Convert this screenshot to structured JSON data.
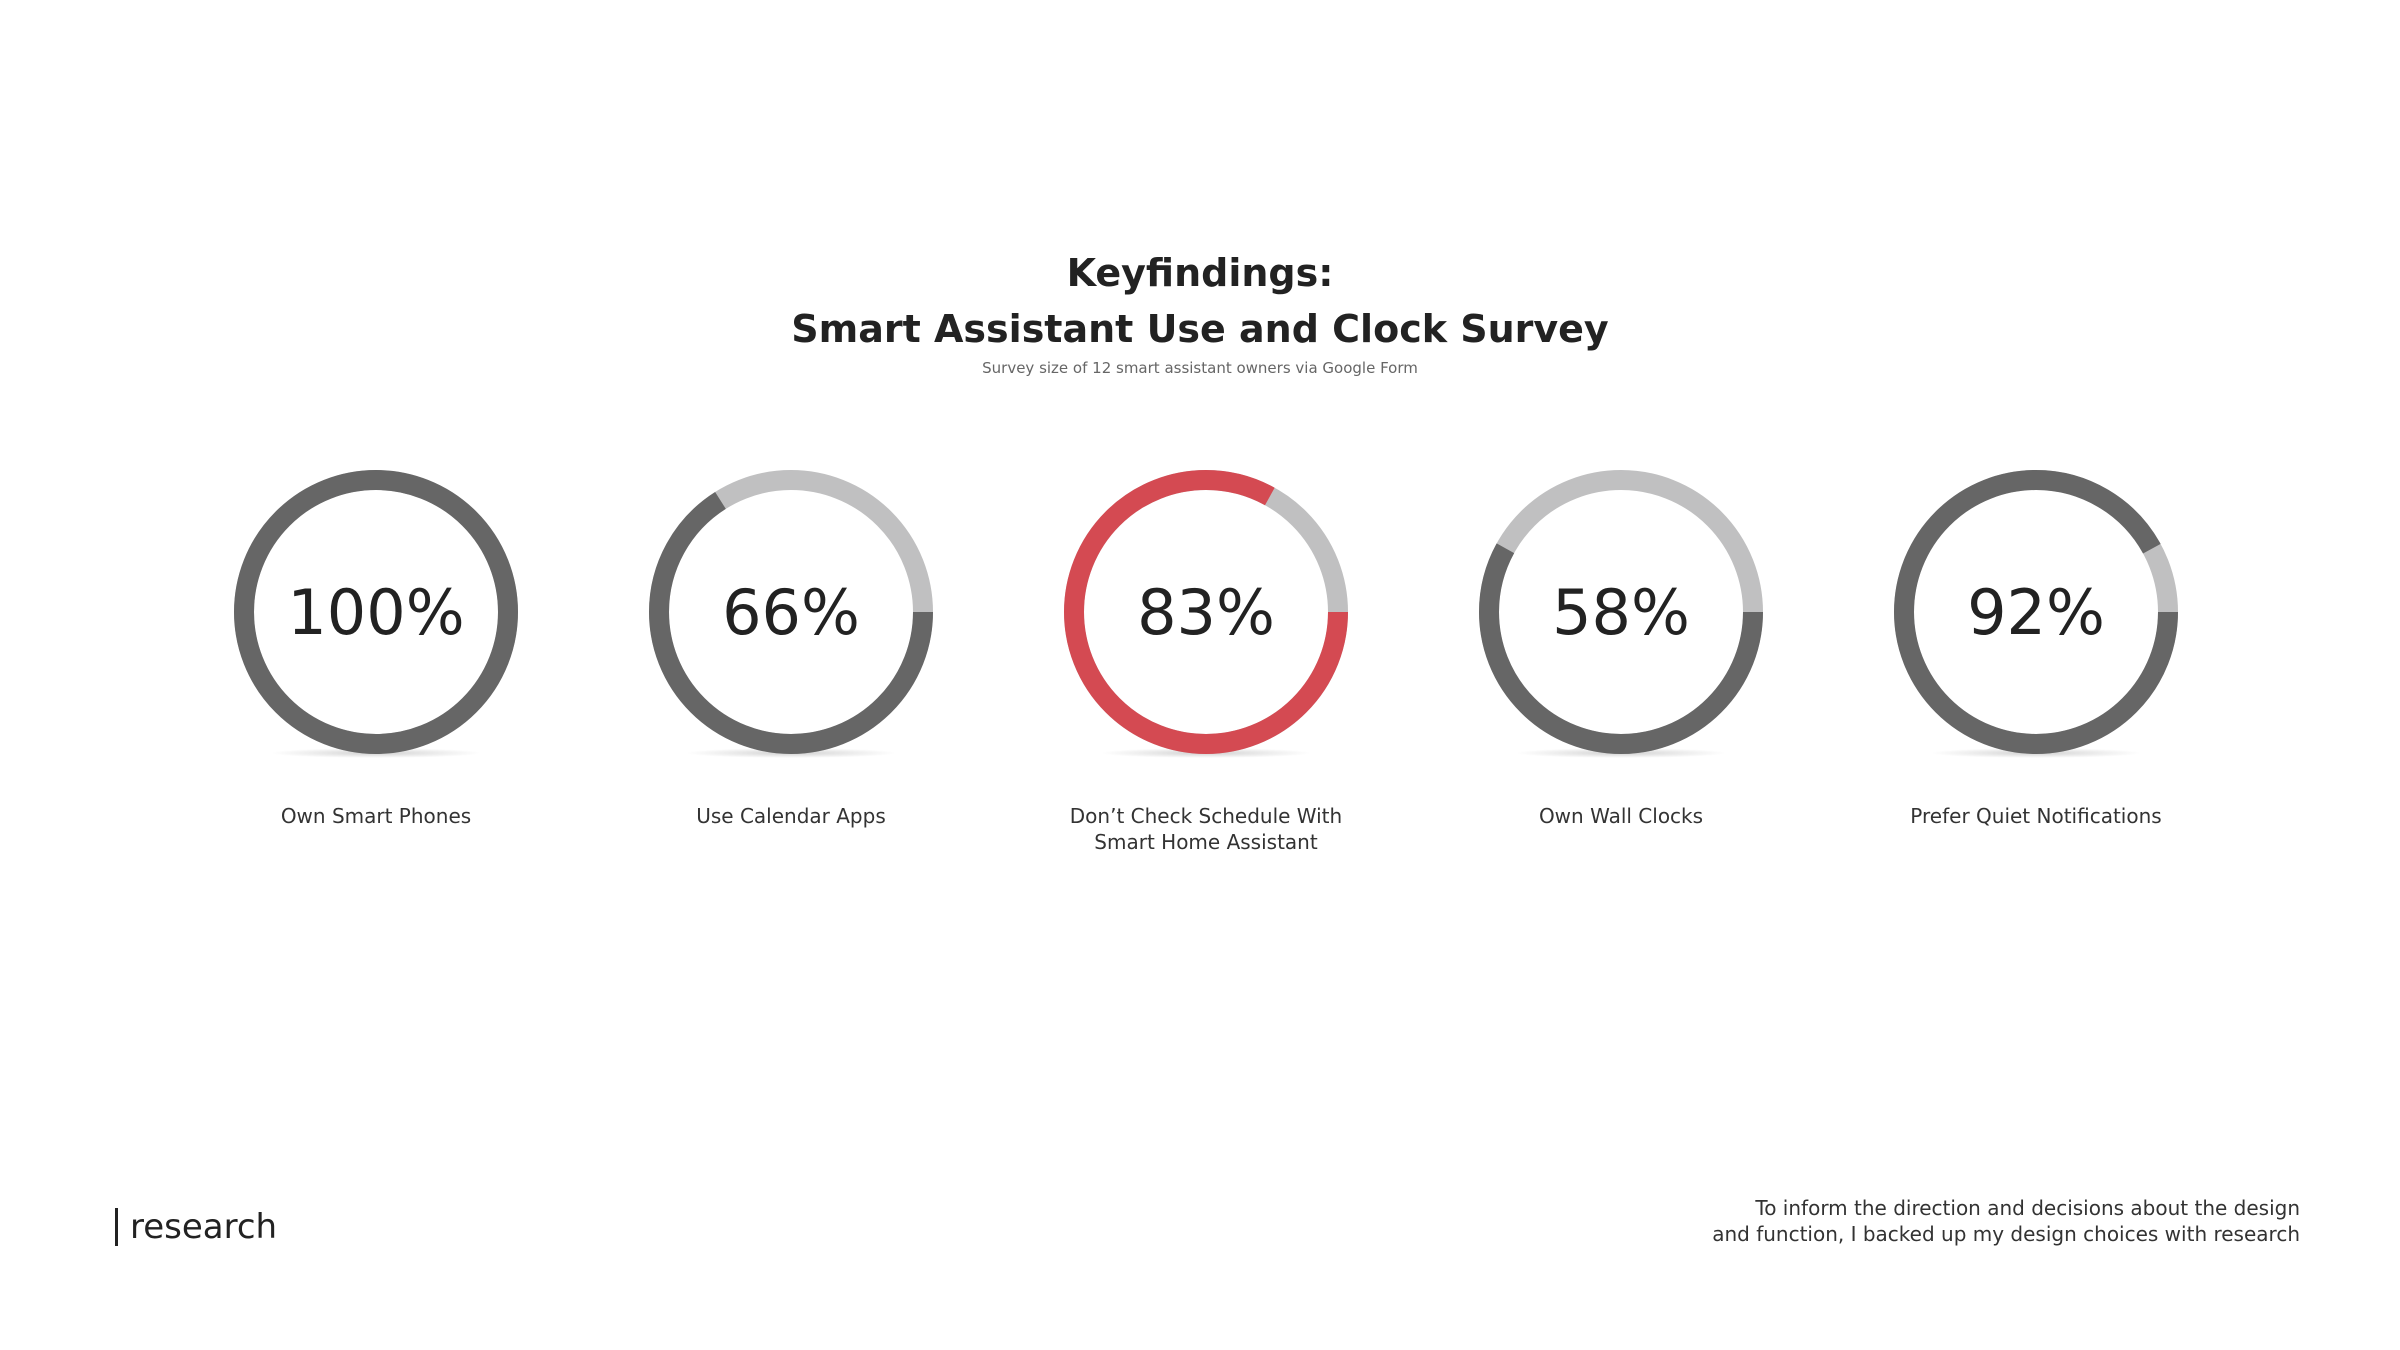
{
  "header": {
    "title_line1": "Keyfindings:",
    "title_line2": "Smart Assistant Use and Clock Survey",
    "subtitle": "Survey size of 12 smart assistant owners via Google Form"
  },
  "colors": {
    "filled": "#666666",
    "remaining": "#c0c0c1",
    "highlight": "#d44a52"
  },
  "chart_data": {
    "type": "pie",
    "variant": "donut",
    "unit": "%",
    "items": [
      {
        "label": "Own Smart Phones",
        "value": 100,
        "display": "100%",
        "highlight": false
      },
      {
        "label": "Use Calendar Apps",
        "value": 66,
        "display": "66%",
        "highlight": false
      },
      {
        "label": "Don’t Check Schedule With Smart Home Assistant",
        "label_lines": [
          "Don’t Check Schedule With",
          "Smart Home Assistant"
        ],
        "value": 83,
        "display": "83%",
        "highlight": true
      },
      {
        "label": "Own Wall Clocks",
        "value": 58,
        "display": "58%",
        "highlight": false
      },
      {
        "label": "Prefer Quiet Notifications",
        "value": 92,
        "display": "92%",
        "highlight": false
      }
    ]
  },
  "footer": {
    "brand": "research",
    "note_line1": "To inform the direction and decisions about the design",
    "note_line2": "and function, I backed up my design choices with research"
  }
}
